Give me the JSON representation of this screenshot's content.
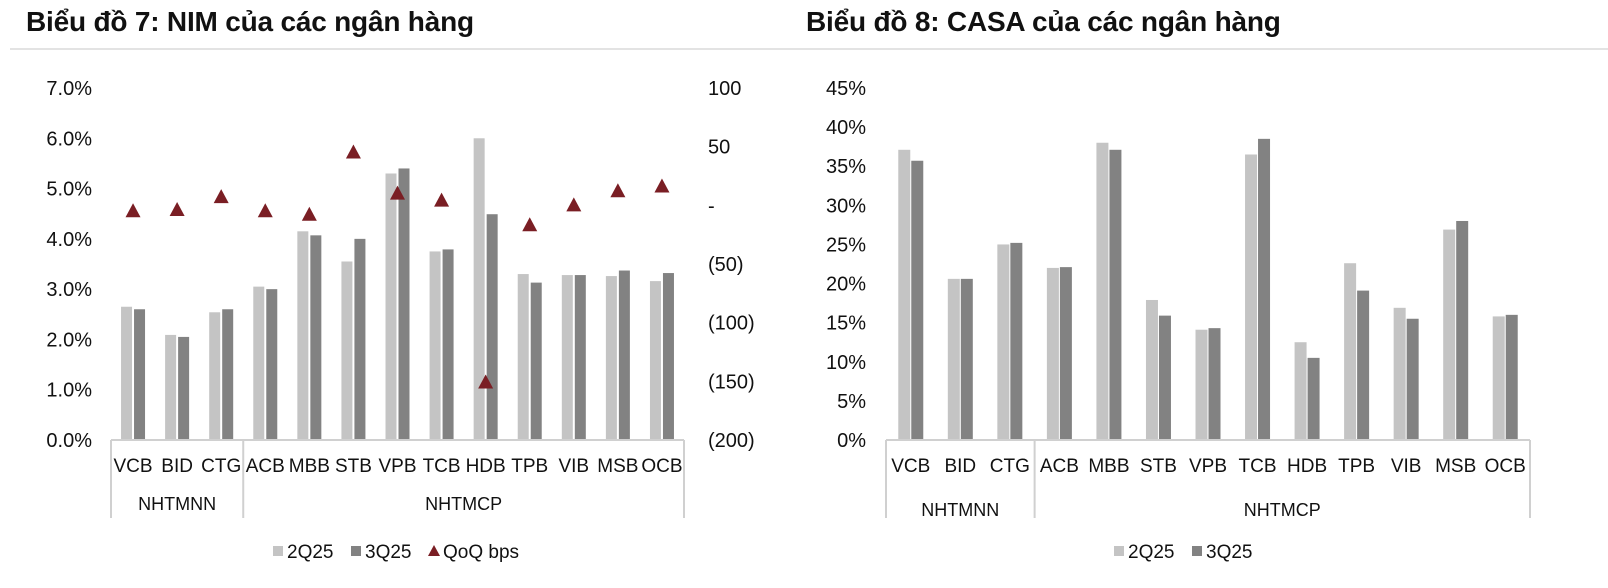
{
  "charts": [
    {
      "title": "Biểu đồ 7: NIM của các ngân hàng",
      "legend": [
        {
          "label": "2Q25",
          "color": "#c4c4c4",
          "shape": "square"
        },
        {
          "label": "3Q25",
          "color": "#828282",
          "shape": "square"
        },
        {
          "label": "QoQ bps",
          "color": "#7a1e24",
          "shape": "triangle"
        }
      ]
    },
    {
      "title": "Biểu đồ 8: CASA của các ngân hàng",
      "legend": [
        {
          "label": "2Q25",
          "color": "#c4c4c4",
          "shape": "square"
        },
        {
          "label": "3Q25",
          "color": "#828282",
          "shape": "square"
        }
      ]
    }
  ],
  "chart_data": [
    {
      "type": "bar",
      "title": "Biểu đồ 7: NIM của các ngân hàng",
      "categories": [
        "VCB",
        "BID",
        "CTG",
        "ACB",
        "MBB",
        "STB",
        "VPB",
        "TCB",
        "HDB",
        "TPB",
        "VIB",
        "MSB",
        "OCB"
      ],
      "groups": [
        {
          "label": "NHTMNN",
          "count": 3
        },
        {
          "label": "NHTMCP",
          "count": 10
        }
      ],
      "series": [
        {
          "name": "2Q25",
          "axis": "left",
          "type": "bar",
          "values": [
            2.65,
            2.09,
            2.54,
            3.05,
            4.15,
            3.55,
            5.3,
            3.75,
            6.0,
            3.3,
            3.28,
            3.26,
            3.16
          ]
        },
        {
          "name": "3Q25",
          "axis": "left",
          "type": "bar",
          "values": [
            2.6,
            2.05,
            2.6,
            3.0,
            4.07,
            4.0,
            5.4,
            3.79,
            4.49,
            3.13,
            3.28,
            3.37,
            3.32
          ]
        },
        {
          "name": "QoQ bps",
          "axis": "right",
          "type": "scatter",
          "marker": "triangle",
          "values": [
            -5,
            -4,
            7,
            -5,
            -8,
            45,
            10,
            4,
            -151,
            -17,
            0,
            12,
            16
          ]
        }
      ],
      "left_axis": {
        "min": 0,
        "max": 7,
        "step": 1,
        "tick_labels": [
          "0.0%",
          "1.0%",
          "2.0%",
          "3.0%",
          "4.0%",
          "5.0%",
          "6.0%",
          "7.0%"
        ]
      },
      "right_axis": {
        "min": -200,
        "max": 100,
        "step": 50,
        "tick_labels": [
          "(200)",
          "(150)",
          "(100)",
          "(50)",
          "-",
          "50",
          "100"
        ]
      },
      "legend_position": "bottom-center",
      "grid": false
    },
    {
      "type": "bar",
      "title": "Biểu đồ 8: CASA của các ngân hàng",
      "categories": [
        "VCB",
        "BID",
        "CTG",
        "ACB",
        "MBB",
        "STB",
        "VPB",
        "TCB",
        "HDB",
        "TPB",
        "VIB",
        "MSB",
        "OCB"
      ],
      "groups": [
        {
          "label": "NHTMNN",
          "count": 3
        },
        {
          "label": "NHTMCP",
          "count": 10
        }
      ],
      "series": [
        {
          "name": "2Q25",
          "axis": "left",
          "type": "bar",
          "values": [
            37.1,
            20.6,
            25.0,
            22.0,
            38.0,
            17.9,
            14.1,
            36.5,
            12.5,
            22.6,
            16.9,
            26.9,
            15.8
          ]
        },
        {
          "name": "3Q25",
          "axis": "left",
          "type": "bar",
          "values": [
            35.7,
            20.6,
            25.2,
            22.1,
            37.1,
            15.9,
            14.3,
            38.5,
            10.5,
            19.1,
            15.5,
            28.0,
            16.0
          ]
        }
      ],
      "left_axis": {
        "min": 0,
        "max": 45,
        "step": 5,
        "tick_labels": [
          "0%",
          "5%",
          "10%",
          "15%",
          "20%",
          "25%",
          "30%",
          "35%",
          "40%",
          "45%"
        ]
      },
      "legend_position": "bottom-center",
      "grid": false
    }
  ]
}
